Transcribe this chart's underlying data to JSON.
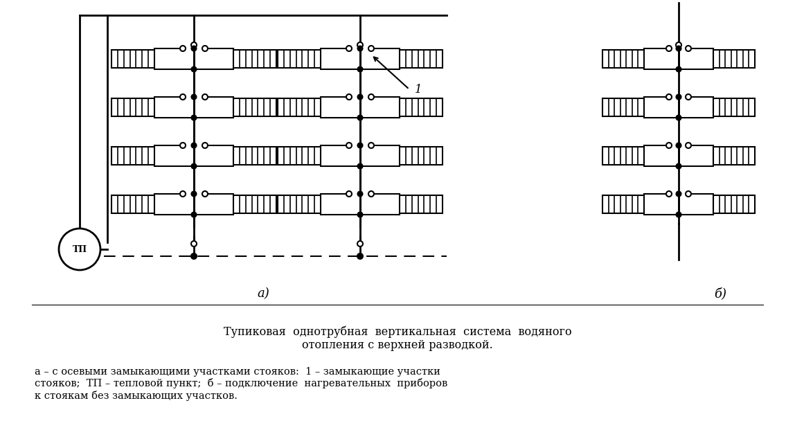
{
  "bg_color": "#ffffff",
  "line_color": "#000000",
  "title_text": "Тупиковая  однотрубная  вертикальная  система  водяного\nотопления с верхней разводкой.",
  "caption_text": "а – с осевыми замыкающими участками стояков:  1 – замыкающие участки\nстояков;  ТП – тепловой пункт;  б – подключение  нагревательных  приборов\nк стоякам без замыкающих участков.",
  "figsize": [
    11.48,
    6.47
  ],
  "dpi": 100
}
